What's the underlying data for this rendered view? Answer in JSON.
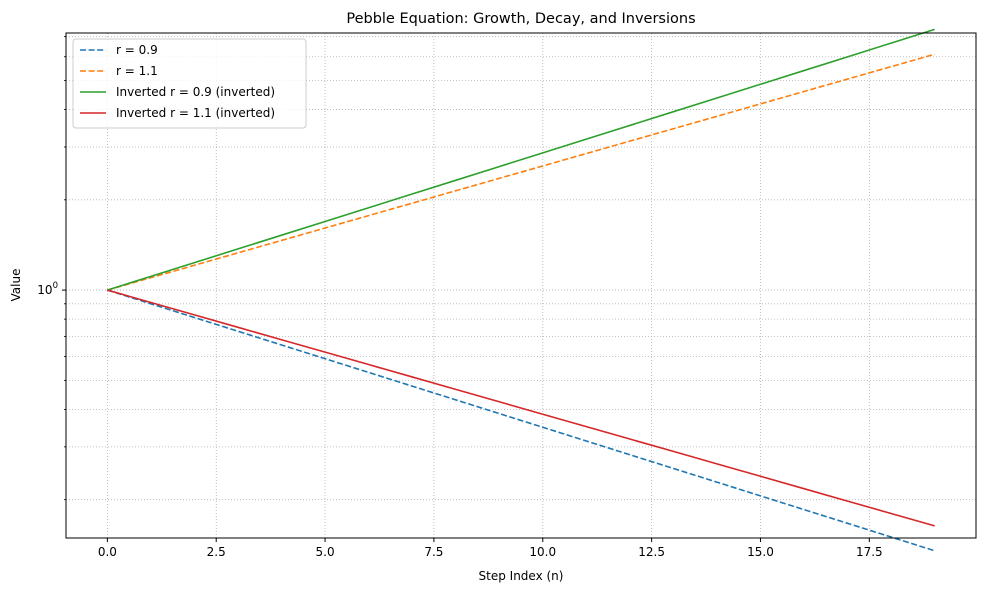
{
  "chart_data": {
    "type": "line",
    "title": "Pebble Equation: Growth, Decay, and Inversions",
    "xlabel": "Step Index (n)",
    "ylabel": "Value",
    "x_scale": "linear",
    "y_scale": "log",
    "xlim": [
      -0.95,
      19.95
    ],
    "ylim": [
      0.149,
      7.2
    ],
    "x_ticks": [
      0,
      2.5,
      5,
      7.5,
      10,
      12.5,
      15,
      17.5
    ],
    "x_tick_labels": [
      "0.0",
      "2.5",
      "5.0",
      "7.5",
      "10.0",
      "12.5",
      "15.0",
      "17.5"
    ],
    "y_major_tick_label": {
      "base": "10",
      "exponent": "0"
    },
    "grid": true,
    "grid_style": "dotted, major and minor",
    "legend_position": "upper-left",
    "x": [
      0,
      1,
      2,
      3,
      4,
      5,
      6,
      7,
      8,
      9,
      10,
      11,
      12,
      13,
      14,
      15,
      16,
      17,
      18,
      19
    ],
    "series": [
      {
        "name": "r = 0.9",
        "color": "#1f77b4",
        "dash": "dashed",
        "values": [
          1.0,
          0.9,
          0.81,
          0.729,
          0.6561,
          0.5905,
          0.5314,
          0.4783,
          0.4305,
          0.3874,
          0.3487,
          0.3138,
          0.2824,
          0.2542,
          0.2288,
          0.2059,
          0.1853,
          0.1668,
          0.1501,
          0.1351
        ]
      },
      {
        "name": "r = 1.1",
        "color": "#ff7f0e",
        "dash": "dashed",
        "values": [
          1.0,
          1.1,
          1.21,
          1.331,
          1.4641,
          1.6105,
          1.7716,
          1.9487,
          2.1436,
          2.3579,
          2.5937,
          2.8531,
          3.1384,
          3.4523,
          3.7975,
          4.1772,
          4.595,
          5.0545,
          5.5599,
          6.1159
        ]
      },
      {
        "name": "Inverted r = 0.9 (inverted)",
        "color": "#2ca02c",
        "dash": "solid",
        "values": [
          1.0,
          1.1111,
          1.2346,
          1.3717,
          1.5242,
          1.6935,
          1.8817,
          2.0908,
          2.3231,
          2.5812,
          2.868,
          3.1866,
          3.5407,
          3.9342,
          4.3713,
          4.857,
          5.3966,
          5.9962,
          6.6625,
          7.4028
        ]
      },
      {
        "name": "Inverted r = 1.1 (inverted)",
        "color": "#d62728",
        "dash": "solid",
        "values": [
          1.0,
          0.9091,
          0.8264,
          0.7513,
          0.683,
          0.6209,
          0.5645,
          0.5132,
          0.4665,
          0.4241,
          0.3855,
          0.3505,
          0.3186,
          0.2897,
          0.2633,
          0.2394,
          0.2176,
          0.1978,
          0.1799,
          0.1635
        ]
      }
    ]
  }
}
